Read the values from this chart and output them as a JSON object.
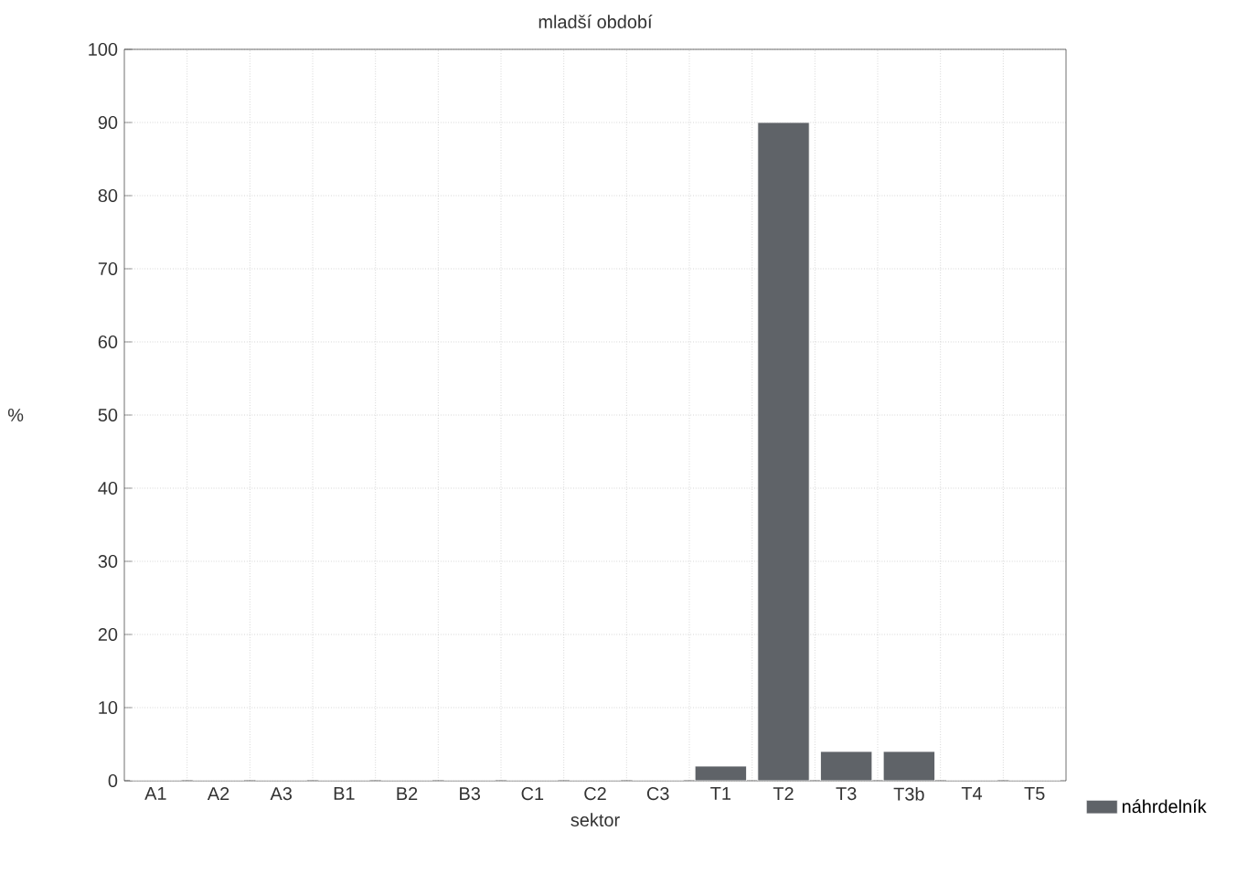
{
  "chart_data": {
    "type": "bar",
    "title": "mladší období",
    "xlabel": "sektor",
    "ylabel": "%",
    "categories": [
      "A1",
      "A2",
      "A3",
      "B1",
      "B2",
      "B3",
      "C1",
      "C2",
      "C3",
      "T1",
      "T2",
      "T3",
      "T3b",
      "T4",
      "T5"
    ],
    "series": [
      {
        "name": "náhrdelník",
        "color": "#5f6368",
        "values": [
          0,
          0,
          0,
          0,
          0,
          0,
          0,
          0,
          0,
          2,
          90,
          4,
          4,
          0,
          0
        ]
      }
    ],
    "ylim": [
      0,
      100
    ],
    "yticks": [
      0,
      10,
      20,
      30,
      40,
      50,
      60,
      70,
      80,
      90,
      100
    ],
    "grid": true,
    "legend": "bottom right"
  }
}
